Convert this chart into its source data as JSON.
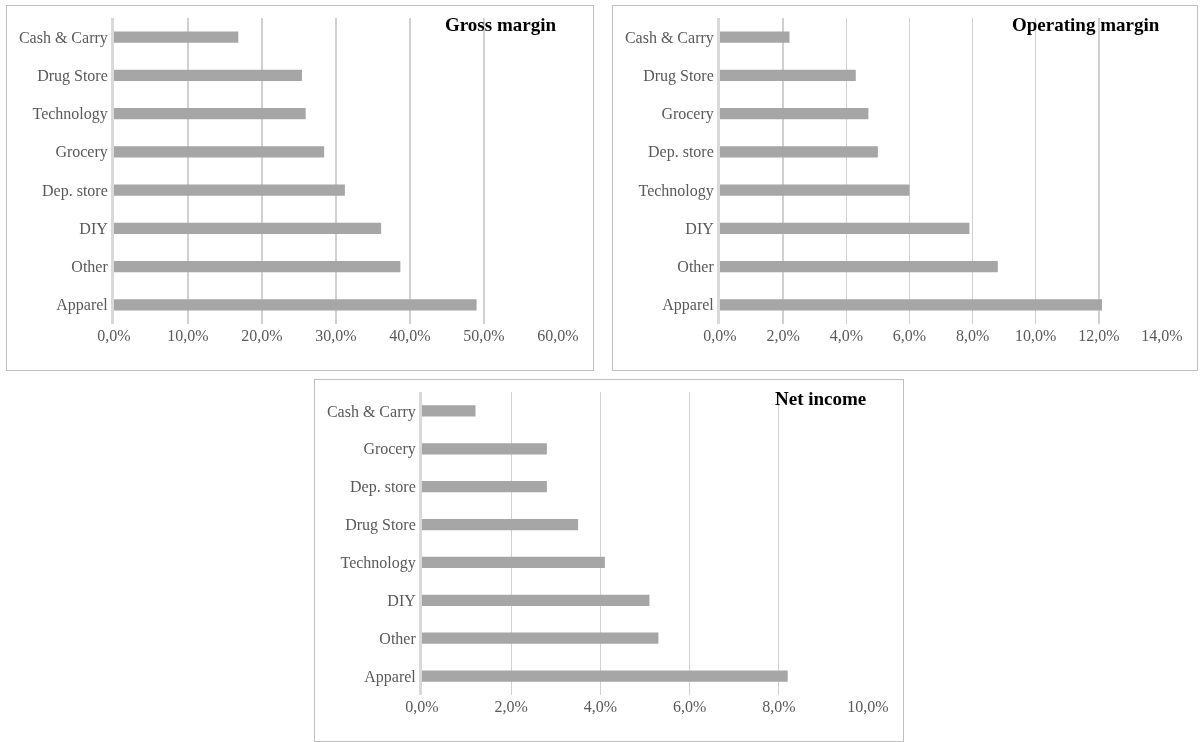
{
  "chart_data": [
    {
      "type": "bar",
      "orientation": "horizontal",
      "title": "Gross margin",
      "categories": [
        "Cash & Carry",
        "Drug Store",
        "Technology",
        "Grocery",
        "Dep. store",
        "DIY",
        "Other",
        "Apparel"
      ],
      "values": [
        16.8,
        25.4,
        25.9,
        28.4,
        31.2,
        36.1,
        38.7,
        49.0
      ],
      "color": "#a6a6a6",
      "xlim": [
        0,
        60
      ],
      "xticks": [
        {
          "value": 0,
          "label": "0,0%"
        },
        {
          "value": 10,
          "label": "10,0%"
        },
        {
          "value": 20,
          "label": "20,0%"
        },
        {
          "value": 30,
          "label": "30,0%"
        },
        {
          "value": 40,
          "label": "40,0%"
        },
        {
          "value": 50,
          "label": "50,0%"
        },
        {
          "value": 60,
          "label": "60,0%"
        }
      ],
      "grid": "x",
      "legend": false
    },
    {
      "type": "bar",
      "orientation": "horizontal",
      "title": "Operating margin",
      "categories": [
        "Cash & Carry",
        "Drug Store",
        "Grocery",
        "Dep. store",
        "Technology",
        "DIY",
        "Other",
        "Apparel"
      ],
      "values": [
        2.2,
        4.3,
        4.7,
        5.0,
        6.0,
        7.9,
        8.8,
        12.1
      ],
      "color": "#a6a6a6",
      "xlim": [
        0,
        14
      ],
      "xticks": [
        {
          "value": 0,
          "label": "0,0%"
        },
        {
          "value": 2,
          "label": "2,0%"
        },
        {
          "value": 4,
          "label": "4,0%"
        },
        {
          "value": 6,
          "label": "6,0%"
        },
        {
          "value": 8,
          "label": "8,0%"
        },
        {
          "value": 10,
          "label": "10,0%"
        },
        {
          "value": 12,
          "label": "12,0%"
        },
        {
          "value": 14,
          "label": "14,0%"
        }
      ],
      "grid": "x",
      "legend": false
    },
    {
      "type": "bar",
      "orientation": "horizontal",
      "title": "Net income",
      "categories": [
        "Cash & Carry",
        "Grocery",
        "Dep. store",
        "Drug Store",
        "Technology",
        "DIY",
        "Other",
        "Apparel"
      ],
      "values": [
        1.2,
        2.8,
        2.8,
        3.5,
        4.1,
        5.1,
        5.3,
        8.2
      ],
      "color": "#a6a6a6",
      "xlim": [
        0,
        10
      ],
      "xticks": [
        {
          "value": 0,
          "label": "0,0%"
        },
        {
          "value": 2,
          "label": "2,0%"
        },
        {
          "value": 4,
          "label": "4,0%"
        },
        {
          "value": 6,
          "label": "6,0%"
        },
        {
          "value": 8,
          "label": "8,0%"
        },
        {
          "value": 10,
          "label": "10,0%"
        }
      ],
      "grid": "x",
      "legend": false
    }
  ]
}
